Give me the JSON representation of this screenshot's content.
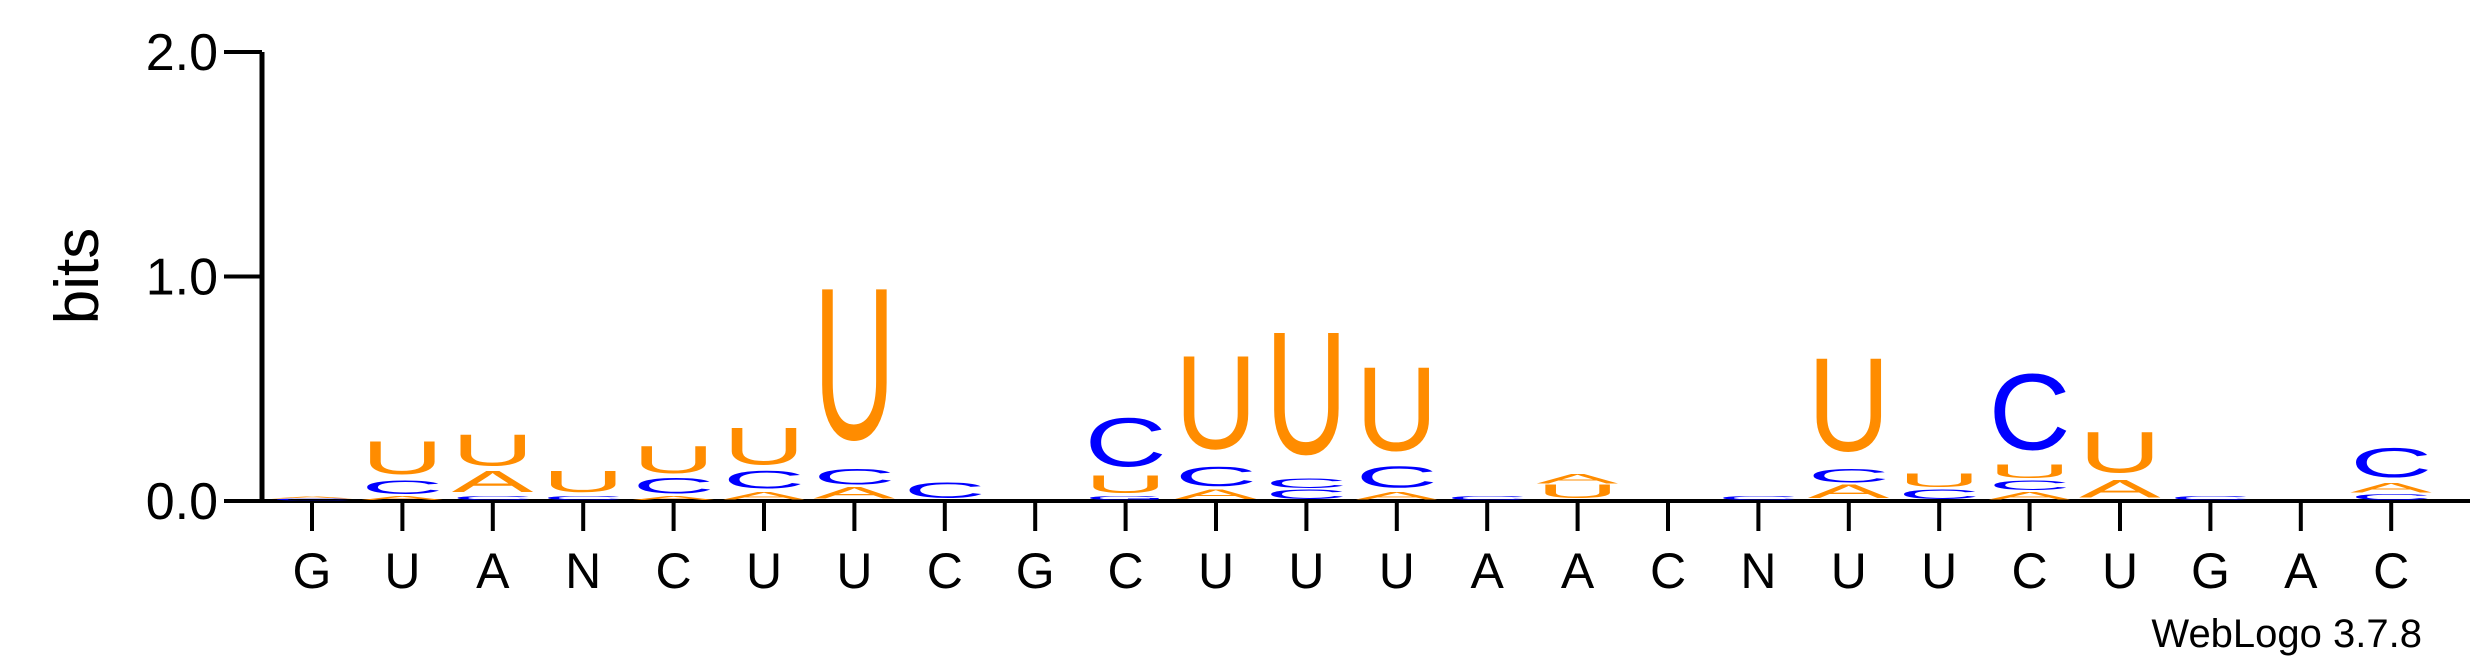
{
  "chart_data": {
    "type": "sequence-logo",
    "ylabel": "bits",
    "ylim": [
      0,
      2.0
    ],
    "yticks": [
      {
        "value": 0.0,
        "label": "0.0"
      },
      {
        "value": 1.0,
        "label": "1.0"
      },
      {
        "value": 2.0,
        "label": "2.0"
      }
    ],
    "credit": "WebLogo 3.7.8",
    "colors": {
      "U": "#FF8C00",
      "A": "#FF8C00",
      "C": "#0000FF",
      "G": "#0000FF"
    },
    "positions": [
      {
        "label": "G",
        "stack": [
          {
            "letter": "C",
            "bits": 0.01
          },
          {
            "letter": "A",
            "bits": 0.01
          }
        ]
      },
      {
        "label": "U",
        "stack": [
          {
            "letter": "A",
            "bits": 0.02
          },
          {
            "letter": "C",
            "bits": 0.07
          },
          {
            "letter": "U",
            "bits": 0.17
          }
        ]
      },
      {
        "label": "A",
        "stack": [
          {
            "letter": "C",
            "bits": 0.02
          },
          {
            "letter": "A",
            "bits": 0.11
          },
          {
            "letter": "U",
            "bits": 0.16
          }
        ]
      },
      {
        "label": "N",
        "stack": [
          {
            "letter": "C",
            "bits": 0.02
          },
          {
            "letter": "U",
            "bits": 0.11
          }
        ]
      },
      {
        "label": "C",
        "stack": [
          {
            "letter": "A",
            "bits": 0.02
          },
          {
            "letter": "C",
            "bits": 0.08
          },
          {
            "letter": "U",
            "bits": 0.14
          }
        ]
      },
      {
        "label": "U",
        "stack": [
          {
            "letter": "A",
            "bits": 0.04
          },
          {
            "letter": "C",
            "bits": 0.09
          },
          {
            "letter": "U",
            "bits": 0.19
          }
        ]
      },
      {
        "label": "U",
        "stack": [
          {
            "letter": "A",
            "bits": 0.06
          },
          {
            "letter": "C",
            "bits": 0.08
          },
          {
            "letter": "U",
            "bits": 0.78
          }
        ]
      },
      {
        "label": "C",
        "stack": [
          {
            "letter": "C",
            "bits": 0.08
          }
        ]
      },
      {
        "label": "G",
        "stack": []
      },
      {
        "label": "C",
        "stack": [
          {
            "letter": "G",
            "bits": 0.02
          },
          {
            "letter": "U",
            "bits": 0.09
          },
          {
            "letter": "C",
            "bits": 0.25
          }
        ]
      },
      {
        "label": "U",
        "stack": [
          {
            "letter": "A",
            "bits": 0.05
          },
          {
            "letter": "C",
            "bits": 0.1
          },
          {
            "letter": "U",
            "bits": 0.48
          }
        ]
      },
      {
        "label": "U",
        "stack": [
          {
            "letter": "C",
            "bits": 0.05
          },
          {
            "letter": "C",
            "bits": 0.05
          },
          {
            "letter": "U",
            "bits": 0.63
          }
        ]
      },
      {
        "label": "U",
        "stack": [
          {
            "letter": "A",
            "bits": 0.04
          },
          {
            "letter": "C",
            "bits": 0.11
          },
          {
            "letter": "U",
            "bits": 0.43
          }
        ]
      },
      {
        "label": "A",
        "stack": [
          {
            "letter": "C",
            "bits": 0.02
          }
        ]
      },
      {
        "label": "A",
        "stack": [
          {
            "letter": "U",
            "bits": 0.07
          },
          {
            "letter": "A",
            "bits": 0.05
          }
        ]
      },
      {
        "label": "C",
        "stack": []
      },
      {
        "label": "N",
        "stack": [
          {
            "letter": "C",
            "bits": 0.02
          }
        ]
      },
      {
        "label": "U",
        "stack": [
          {
            "letter": "A",
            "bits": 0.07
          },
          {
            "letter": "C",
            "bits": 0.07
          },
          {
            "letter": "U",
            "bits": 0.48
          }
        ]
      },
      {
        "label": "U",
        "stack": [
          {
            "letter": "C",
            "bits": 0.05
          },
          {
            "letter": "U",
            "bits": 0.07
          }
        ]
      },
      {
        "label": "C",
        "stack": [
          {
            "letter": "A",
            "bits": 0.04
          },
          {
            "letter": "C",
            "bits": 0.05
          },
          {
            "letter": "U",
            "bits": 0.07
          },
          {
            "letter": "C",
            "bits": 0.39
          }
        ]
      },
      {
        "label": "U",
        "stack": [
          {
            "letter": "A",
            "bits": 0.09
          },
          {
            "letter": "U",
            "bits": 0.21
          }
        ]
      },
      {
        "label": "G",
        "stack": [
          {
            "letter": "C",
            "bits": 0.02
          }
        ]
      },
      {
        "label": "A",
        "stack": []
      },
      {
        "label": "C",
        "stack": [
          {
            "letter": "C",
            "bits": 0.03
          },
          {
            "letter": "A",
            "bits": 0.05
          },
          {
            "letter": "C",
            "bits": 0.15
          }
        ]
      }
    ]
  }
}
